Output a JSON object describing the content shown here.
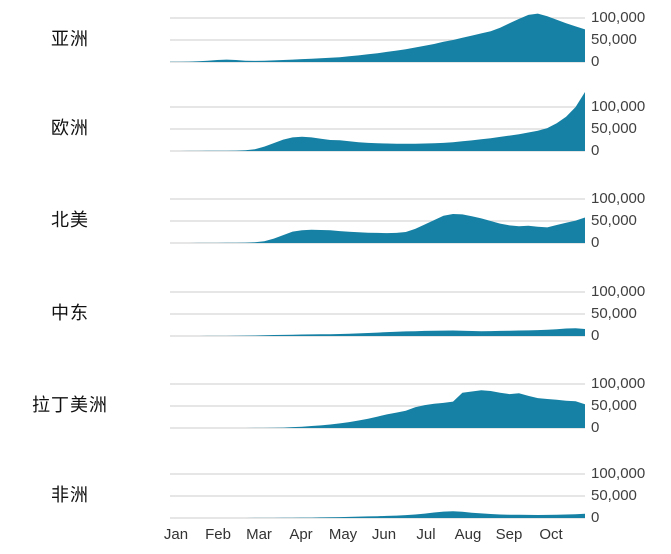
{
  "colors": {
    "area": "#1681a4",
    "gridline": "#d8d8d8",
    "tick_text": "#404040",
    "month_text": "#333333",
    "region_text": "#111111"
  },
  "chart_data": {
    "type": "area",
    "title": "",
    "layout": {
      "small_multiples": true,
      "grid": "horizontal",
      "y_ticks_position": "right",
      "x_range": [
        "Jan 1",
        "Oct 31"
      ],
      "ylim_display": [
        0,
        100000
      ]
    },
    "x_axis": {
      "months": [
        "Jan",
        "Feb",
        "Mar",
        "Apr",
        "May",
        "Jun",
        "Jul",
        "Aug",
        "Sep",
        "Oct"
      ]
    },
    "y_axis": {
      "ticks": [
        "100,000",
        "50,000",
        "0"
      ],
      "tick_values": [
        100000,
        50000,
        0
      ]
    },
    "series": [
      {
        "name": "亚洲",
        "values": [
          400,
          500,
          800,
          1500,
          3000,
          4500,
          5500,
          4500,
          2800,
          2600,
          3000,
          3600,
          4500,
          5500,
          6500,
          7500,
          8500,
          9500,
          11000,
          13000,
          15000,
          17500,
          20000,
          23000,
          26000,
          29000,
          33000,
          37000,
          41000,
          46000,
          50000,
          55000,
          60000,
          65000,
          70000,
          78000,
          88000,
          98000,
          107000,
          110000,
          104000,
          96000,
          88000,
          81000,
          74000
        ]
      },
      {
        "name": "欧洲",
        "values": [
          100,
          100,
          200,
          300,
          400,
          500,
          600,
          800,
          1500,
          4000,
          10000,
          18000,
          26000,
          31000,
          32500,
          31000,
          28000,
          25000,
          24500,
          22000,
          20000,
          18500,
          17500,
          17000,
          16500,
          16500,
          16500,
          17000,
          17500,
          18500,
          20000,
          22000,
          24000,
          26500,
          29000,
          32000,
          35000,
          38000,
          42000,
          46000,
          52000,
          63000,
          78000,
          100000,
          134000
        ]
      },
      {
        "name": "北美",
        "values": [
          100,
          100,
          100,
          200,
          200,
          300,
          400,
          500,
          800,
          1500,
          4000,
          10000,
          18000,
          26000,
          29000,
          30000,
          29500,
          29000,
          27000,
          25500,
          24500,
          23500,
          23000,
          22500,
          23000,
          25000,
          32000,
          42000,
          52000,
          62000,
          66000,
          65000,
          61000,
          56000,
          50000,
          44000,
          40000,
          38000,
          39000,
          37000,
          35500,
          41000,
          46000,
          51000,
          58000
        ]
      },
      {
        "name": "中东",
        "values": [
          50,
          50,
          100,
          100,
          150,
          200,
          300,
          500,
          800,
          1200,
          1800,
          2200,
          2600,
          3000,
          3300,
          3600,
          3900,
          4200,
          4600,
          5200,
          6000,
          6800,
          7800,
          8800,
          9600,
          10400,
          11000,
          11600,
          12000,
          12200,
          12400,
          12000,
          11400,
          11000,
          11200,
          11600,
          12000,
          12400,
          12800,
          13400,
          14000,
          15500,
          17000,
          17500,
          16000
        ]
      },
      {
        "name": "拉丁美洲",
        "values": [
          0,
          0,
          0,
          0,
          0,
          50,
          50,
          100,
          100,
          200,
          300,
          500,
          1000,
          2000,
          3000,
          4500,
          6000,
          8000,
          10500,
          13500,
          17000,
          21000,
          26000,
          31000,
          35000,
          39000,
          47000,
          52000,
          55000,
          57000,
          60000,
          80000,
          83000,
          86000,
          84000,
          80000,
          77000,
          79000,
          73000,
          68000,
          66000,
          64000,
          62000,
          61000,
          54000
        ]
      },
      {
        "name": "非洲",
        "values": [
          0,
          0,
          0,
          0,
          0,
          0,
          0,
          50,
          100,
          150,
          200,
          300,
          400,
          600,
          800,
          1000,
          1300,
          1700,
          2100,
          2600,
          3100,
          3600,
          4200,
          4800,
          5500,
          6500,
          8000,
          10000,
          12500,
          14500,
          15500,
          14000,
          12000,
          10500,
          9000,
          8000,
          7500,
          7200,
          7000,
          6800,
          7000,
          7500,
          8000,
          8500,
          9500
        ]
      }
    ]
  }
}
